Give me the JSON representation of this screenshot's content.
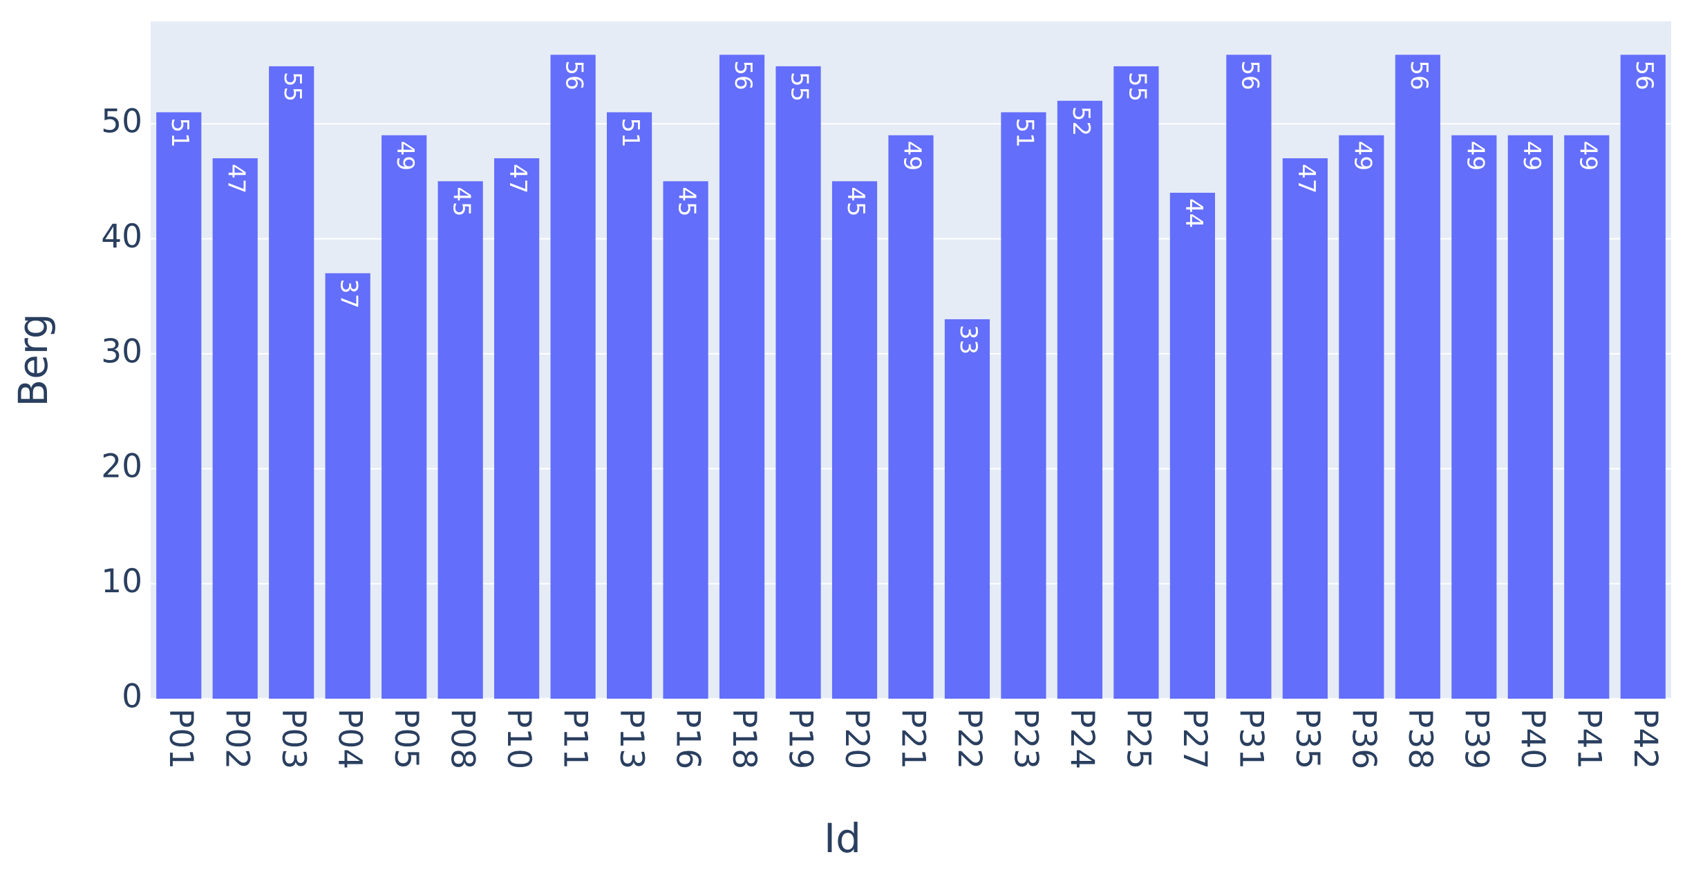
{
  "chart_data": {
    "type": "bar",
    "x_label": "Id",
    "y_label": "Berg",
    "categories": [
      "P01",
      "P02",
      "P03",
      "P04",
      "P05",
      "P08",
      "P10",
      "P11",
      "P13",
      "P16",
      "P18",
      "P19",
      "P20",
      "P21",
      "P22",
      "P23",
      "P24",
      "P25",
      "P27",
      "P31",
      "P35",
      "P36",
      "P38",
      "P39",
      "P40",
      "P41",
      "P42"
    ],
    "values": [
      51,
      47,
      55,
      37,
      49,
      45,
      47,
      56,
      51,
      45,
      56,
      55,
      45,
      49,
      33,
      51,
      52,
      55,
      44,
      56,
      47,
      49,
      56,
      49,
      49,
      49,
      56
    ],
    "color": "#636efa",
    "ylim": [
      0,
      58.9
    ],
    "yticks": [
      0,
      10,
      20,
      30,
      40,
      50
    ],
    "grid": true
  }
}
